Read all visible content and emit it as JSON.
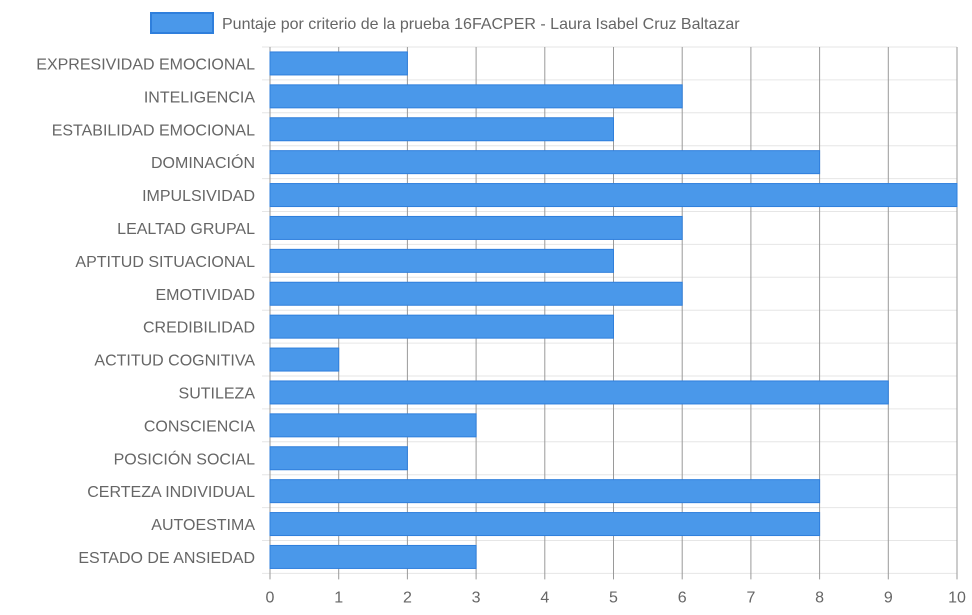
{
  "colors": {
    "bar_fill": "#4a98ea",
    "bar_stroke": "#2f7fdc",
    "grid_vertical": "#9a9a9a",
    "grid_horizontal": "#e6e6e6",
    "text": "#666666"
  },
  "chart_data": {
    "type": "bar",
    "orientation": "horizontal",
    "categories": [
      "EXPRESIVIDAD EMOCIONAL",
      "INTELIGENCIA",
      "ESTABILIDAD EMOCIONAL",
      "DOMINACIÓN",
      "IMPULSIVIDAD",
      "LEALTAD GRUPAL",
      "APTITUD SITUACIONAL",
      "EMOTIVIDAD",
      "CREDIBILIDAD",
      "ACTITUD COGNITIVA",
      "SUTILEZA",
      "CONSCIENCIA",
      "POSICIÓN SOCIAL",
      "CERTEZA INDIVIDUAL",
      "AUTOESTIMA",
      "ESTADO DE ANSIEDAD"
    ],
    "series": [
      {
        "name": "Puntaje por criterio de la prueba 16FACPER - Laura Isabel Cruz Baltazar",
        "values": [
          2,
          6,
          5,
          8,
          10,
          6,
          5,
          6,
          5,
          1,
          9,
          3,
          2,
          8,
          8,
          3
        ]
      }
    ],
    "xlim": [
      0,
      10
    ],
    "xticks": [
      "0",
      "1",
      "2",
      "3",
      "4",
      "5",
      "6",
      "7",
      "8",
      "9",
      "10"
    ],
    "grid": true,
    "legend_position": "top"
  }
}
